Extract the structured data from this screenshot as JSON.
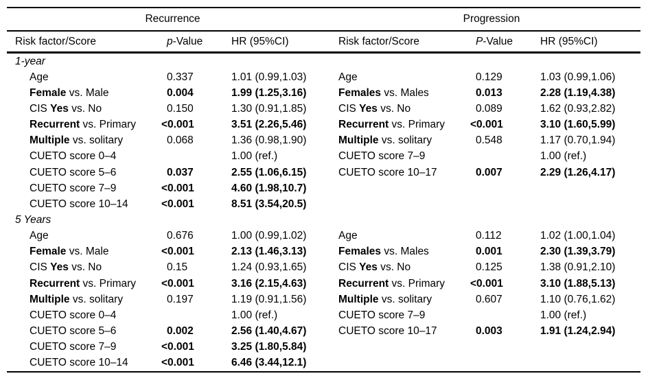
{
  "colors": {
    "background": "#ffffff",
    "text": "#000000",
    "rule": "#000000"
  },
  "table": {
    "groups": [
      {
        "title": "Recurrence",
        "headers": {
          "risk": "Risk factor/Score",
          "p": [
            {
              "t": "p",
              "i": true
            },
            {
              "t": "-Value"
            }
          ],
          "hr": "HR (95%CI)"
        }
      },
      {
        "title": "Progression",
        "headers": {
          "risk": "Risk factor/Score",
          "p": [
            {
              "t": "P",
              "i": true
            },
            {
              "t": "-Value"
            }
          ],
          "hr": "HR (95%CI)"
        }
      }
    ],
    "sections": [
      {
        "label": "1-year",
        "recurrence": [
          {
            "name": [
              {
                "t": "Age"
              }
            ],
            "p": "0.337",
            "hr": "1.01 (0.99,1.03)",
            "bold": false
          },
          {
            "name": [
              {
                "t": "Female",
                "b": true
              },
              {
                "t": " vs. Male"
              }
            ],
            "p": "0.004",
            "hr": "1.99 (1.25,3.16)",
            "bold": true
          },
          {
            "name": [
              {
                "t": "CIS "
              },
              {
                "t": "Yes",
                "b": true
              },
              {
                "t": " vs. No"
              }
            ],
            "p": "0.150",
            "hr": "1.30 (0.91,1.85)",
            "bold": false
          },
          {
            "name": [
              {
                "t": "Recurrent",
                "b": true
              },
              {
                "t": " vs. Primary"
              }
            ],
            "p": "<0.001",
            "hr": "3.51 (2.26,5.46)",
            "bold": true
          },
          {
            "name": [
              {
                "t": "Multiple",
                "b": true
              },
              {
                "t": " vs. solitary"
              }
            ],
            "p": "0.068",
            "hr": "1.36 (0.98,1.90)",
            "bold": false
          },
          {
            "name": [
              {
                "t": "CUETO score 0–4"
              }
            ],
            "p": "",
            "hr": "1.00 (ref.)",
            "bold": false
          },
          {
            "name": [
              {
                "t": "CUETO score 5–6"
              }
            ],
            "p": "0.037",
            "hr": "2.55 (1.06,6.15)",
            "bold": true
          },
          {
            "name": [
              {
                "t": "CUETO score 7–9"
              }
            ],
            "p": "<0.001",
            "hr": "4.60 (1.98,10.7)",
            "bold": true
          },
          {
            "name": [
              {
                "t": "CUETO score 10–14"
              }
            ],
            "p": "<0.001",
            "hr": "8.51 (3.54,20.5)",
            "bold": true
          }
        ],
        "progression": [
          {
            "name": [
              {
                "t": "Age"
              }
            ],
            "p": "0.129",
            "hr": "1.03 (0.99,1.06)",
            "bold": false
          },
          {
            "name": [
              {
                "t": "Females",
                "b": true
              },
              {
                "t": " vs. Males"
              }
            ],
            "p": "0.013",
            "hr": "2.28 (1.19,4.38)",
            "bold": true
          },
          {
            "name": [
              {
                "t": "CIS "
              },
              {
                "t": "Yes",
                "b": true
              },
              {
                "t": " vs. No"
              }
            ],
            "p": "0.089",
            "hr": "1.62 (0.93,2.82)",
            "bold": false
          },
          {
            "name": [
              {
                "t": "Recurrent",
                "b": true
              },
              {
                "t": " vs. Primary"
              }
            ],
            "p": "<0.001",
            "hr": "3.10 (1.60,5.99)",
            "bold": true
          },
          {
            "name": [
              {
                "t": "Multiple",
                "b": true
              },
              {
                "t": " vs. solitary"
              }
            ],
            "p": "0.548",
            "hr": "1.17 (0.70,1.94)",
            "bold": false
          },
          {
            "name": [
              {
                "t": "CUETO score 7–9"
              }
            ],
            "p": "",
            "hr": "1.00 (ref.)",
            "bold": false
          },
          {
            "name": [
              {
                "t": "CUETO score 10–17"
              }
            ],
            "p": "0.007",
            "hr": "2.29 (1.26,4.17)",
            "bold": true
          }
        ]
      },
      {
        "label": "5 Years",
        "recurrence": [
          {
            "name": [
              {
                "t": "Age"
              }
            ],
            "p": "0.676",
            "hr": "1.00 (0.99,1.02)",
            "bold": false
          },
          {
            "name": [
              {
                "t": "Female",
                "b": true
              },
              {
                "t": " vs. Male"
              }
            ],
            "p": "<0.001",
            "hr": "2.13 (1.46,3.13)",
            "bold": true
          },
          {
            "name": [
              {
                "t": "CIS "
              },
              {
                "t": "Yes",
                "b": true
              },
              {
                "t": " vs. No"
              }
            ],
            "p": "0.15",
            "hr": "1.24 (0.93,1.65)",
            "bold": false
          },
          {
            "name": [
              {
                "t": "Recurrent",
                "b": true
              },
              {
                "t": " vs. Primary"
              }
            ],
            "p": "<0.001",
            "hr": "3.16 (2.15,4.63)",
            "bold": true
          },
          {
            "name": [
              {
                "t": "Multiple",
                "b": true
              },
              {
                "t": " vs. solitary"
              }
            ],
            "p": "0.197",
            "hr": "1.19 (0.91,1.56)",
            "bold": false
          },
          {
            "name": [
              {
                "t": "CUETO score 0–4"
              }
            ],
            "p": "",
            "hr": "1.00 (ref.)",
            "bold": false
          },
          {
            "name": [
              {
                "t": "CUETO score 5–6"
              }
            ],
            "p": "0.002",
            "hr": "2.56 (1.40,4.67)",
            "bold": true
          },
          {
            "name": [
              {
                "t": "CUETO score 7–9"
              }
            ],
            "p": "<0.001",
            "hr": "3.25 (1.80,5.84)",
            "bold": true
          },
          {
            "name": [
              {
                "t": "CUETO score 10–14"
              }
            ],
            "p": "<0.001",
            "hr": "6.46 (3.44,12.1)",
            "bold": true
          }
        ],
        "progression": [
          {
            "name": [
              {
                "t": "Age"
              }
            ],
            "p": "0.112",
            "hr": "1.02 (1.00,1.04)",
            "bold": false
          },
          {
            "name": [
              {
                "t": "Females",
                "b": true
              },
              {
                "t": " vs. Males"
              }
            ],
            "p": "0.001",
            "hr": "2.30 (1.39,3.79)",
            "bold": true
          },
          {
            "name": [
              {
                "t": "CIS "
              },
              {
                "t": "Yes",
                "b": true
              },
              {
                "t": " vs. No"
              }
            ],
            "p": "0.125",
            "hr": "1.38 (0.91,2.10)",
            "bold": false
          },
          {
            "name": [
              {
                "t": "Recurrent",
                "b": true
              },
              {
                "t": " vs. Primary"
              }
            ],
            "p": "<0.001",
            "hr": "3.10 (1.88,5.13)",
            "bold": true
          },
          {
            "name": [
              {
                "t": "Multiple",
                "b": true
              },
              {
                "t": " vs. solitary"
              }
            ],
            "p": "0.607",
            "hr": "1.10 (0.76,1.62)",
            "bold": false
          },
          {
            "name": [
              {
                "t": "CUETO score 7–9"
              }
            ],
            "p": "",
            "hr": "1.00 (ref.)",
            "bold": false
          },
          {
            "name": [
              {
                "t": "CUETO score 10–17"
              }
            ],
            "p": "0.003",
            "hr": "1.91 (1.24,2.94)",
            "bold": true
          }
        ]
      }
    ]
  }
}
